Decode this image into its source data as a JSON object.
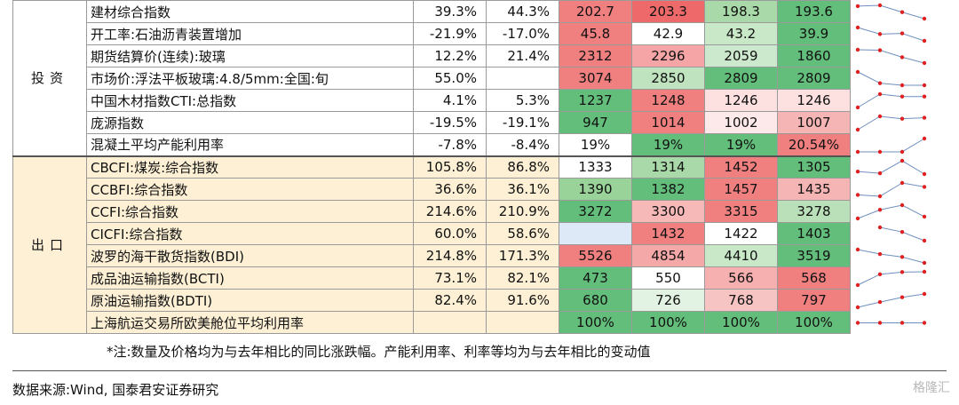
{
  "table": {
    "groups": [
      {
        "name": "投资",
        "kind": "inv",
        "rows": [
          {
            "name": "建材综合指数",
            "yoy1": "39.3%",
            "yoy2": "44.3%",
            "vals": [
              "202.7",
              "203.3",
              "198.3",
              "193.6"
            ],
            "colors": [
              "#f08080",
              "#ee6a6a",
              "#a9d9a9",
              "#63be7b"
            ]
          },
          {
            "name": "开工率:石油沥青装置增加",
            "yoy1": "-21.9%",
            "yoy2": "-17.0%",
            "vals": [
              "45.8",
              "42.9",
              "43.2",
              "39.9"
            ],
            "colors": [
              "#f08080",
              "#ffffff",
              "#c8e8c8",
              "#63be7b"
            ]
          },
          {
            "name": "期货结算价(连续):玻璃",
            "yoy1": "12.2%",
            "yoy2": "21.4%",
            "vals": [
              "2312",
              "2296",
              "2059",
              "1860"
            ],
            "colors": [
              "#f08080",
              "#f5a5a5",
              "#cde9cd",
              "#63be7b"
            ]
          },
          {
            "name": "市场价:浮法平板玻璃:4.8/5mm:全国:旬",
            "yoy1": "55.0%",
            "yoy2": "",
            "vals": [
              "3074",
              "2850",
              "2809",
              "2809"
            ],
            "colors": [
              "#f08080",
              "#bfe3bf",
              "#63be7b",
              "#63be7b"
            ]
          },
          {
            "name": "中国木材指数CTI:总指数",
            "yoy1": "4.1%",
            "yoy2": "5.3%",
            "vals": [
              "1237",
              "1248",
              "1246",
              "1246"
            ],
            "colors": [
              "#63be7b",
              "#f08080",
              "#fde0e0",
              "#fde0e0"
            ]
          },
          {
            "name": "庞源指数",
            "yoy1": "-19.5%",
            "yoy2": "-19.1%",
            "vals": [
              "947",
              "1014",
              "1002",
              "1007"
            ],
            "colors": [
              "#63be7b",
              "#f08080",
              "#fde9e9",
              "#f6b5b5"
            ]
          },
          {
            "name": "混凝土平均产能利用率",
            "yoy1": "-7.8%",
            "yoy2": "-8.4%",
            "vals": [
              "19%",
              "19%",
              "19%",
              "20.54%"
            ],
            "colors": [
              "#ffffff",
              "#63be7b",
              "#63be7b",
              "#f08080"
            ]
          }
        ]
      },
      {
        "name": "出口",
        "kind": "exp",
        "rows": [
          {
            "name": "CBCFI:煤炭:综合指数",
            "yoy1": "105.8%",
            "yoy2": "86.8%",
            "vals": [
              "1333",
              "1314",
              "1452",
              "1305"
            ],
            "colors": [
              "#ffffff",
              "#a9d9a9",
              "#f08080",
              "#63be7b"
            ]
          },
          {
            "name": "CCBFI:综合指数",
            "yoy1": "36.6%",
            "yoy2": "36.1%",
            "vals": [
              "1390",
              "1382",
              "1457",
              "1435"
            ],
            "colors": [
              "#9ad39a",
              "#63be7b",
              "#f08080",
              "#f6b5b5"
            ]
          },
          {
            "name": "CCFI:综合指数",
            "yoy1": "214.6%",
            "yoy2": "210.9%",
            "vals": [
              "3272",
              "3300",
              "3315",
              "3278"
            ],
            "colors": [
              "#63be7b",
              "#f7b8b8",
              "#f08080",
              "#b9e0b9"
            ]
          },
          {
            "name": "CICFI:综合指数",
            "yoy1": "60.0%",
            "yoy2": "58.6%",
            "vals": [
              "",
              "1432",
              "1422",
              "1403"
            ],
            "colors": [
              "#dde9f7",
              "#f08080",
              "#ffffff",
              "#63be7b"
            ]
          },
          {
            "name": "波罗的海干散货指数(BDI)",
            "yoy1": "214.8%",
            "yoy2": "171.3%",
            "vals": [
              "5526",
              "4854",
              "4410",
              "3519"
            ],
            "colors": [
              "#f08080",
              "#f5a8a8",
              "#c8e8c8",
              "#63be7b"
            ]
          },
          {
            "name": "成品油运输指数(BCTI)",
            "yoy1": "73.1%",
            "yoy2": "82.1%",
            "vals": [
              "473",
              "550",
              "566",
              "568"
            ],
            "colors": [
              "#63be7b",
              "#ffffff",
              "#f6b0b0",
              "#f08080"
            ]
          },
          {
            "name": "原油运输指数(BDTI)",
            "yoy1": "82.4%",
            "yoy2": "91.6%",
            "vals": [
              "680",
              "726",
              "768",
              "797"
            ],
            "colors": [
              "#63be7b",
              "#e3f3e3",
              "#f7c4c4",
              "#f08080"
            ]
          },
          {
            "name": "上海航运交易所欧美舱位平均利用率",
            "yoy1": "",
            "yoy2": "",
            "vals": [
              "100%",
              "100%",
              "100%",
              "100%"
            ],
            "colors": [
              "#63be7b",
              "#63be7b",
              "#63be7b",
              "#63be7b"
            ]
          }
        ]
      }
    ]
  },
  "note": "*注:数量及价格均为与去年相比的同比涨跌幅。产能利用率、利率等均为与去年相比的变动值",
  "source": "数据来源:Wind, 国泰君安证券研究",
  "watermark": "格隆汇"
}
